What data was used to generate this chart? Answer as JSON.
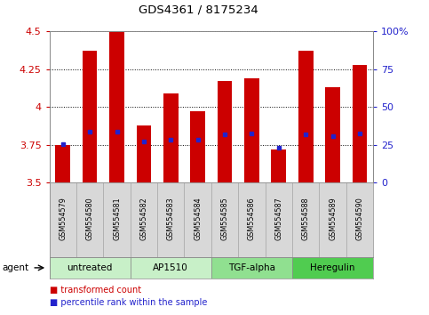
{
  "title": "GDS4361 / 8175234",
  "samples": [
    "GSM554579",
    "GSM554580",
    "GSM554581",
    "GSM554582",
    "GSM554583",
    "GSM554584",
    "GSM554585",
    "GSM554586",
    "GSM554587",
    "GSM554588",
    "GSM554589",
    "GSM554590"
  ],
  "bar_values": [
    3.75,
    4.37,
    4.5,
    3.88,
    4.09,
    3.97,
    4.17,
    4.19,
    3.72,
    4.37,
    4.13,
    4.28
  ],
  "percentile_values": [
    3.755,
    3.835,
    3.838,
    3.77,
    3.785,
    3.783,
    3.822,
    3.828,
    3.732,
    3.822,
    3.808,
    3.828
  ],
  "ymin": 3.5,
  "ymax": 4.5,
  "yticks": [
    3.5,
    3.75,
    4.0,
    4.25,
    4.5
  ],
  "ytick_labels": [
    "3.5",
    "3.75",
    "4",
    "4.25",
    "4.5"
  ],
  "right_yticks": [
    0,
    25,
    50,
    75,
    100
  ],
  "right_ytick_labels": [
    "0",
    "25",
    "50",
    "75",
    "100%"
  ],
  "bar_color": "#cc0000",
  "percentile_color": "#2222cc",
  "grid_color": "#000000",
  "bar_width": 0.55,
  "agents": [
    {
      "label": "untreated",
      "start": 0,
      "end": 3,
      "color": "#c8f0c8"
    },
    {
      "label": "AP1510",
      "start": 3,
      "end": 6,
      "color": "#c8f0c8"
    },
    {
      "label": "TGF-alpha",
      "start": 6,
      "end": 9,
      "color": "#90e090"
    },
    {
      "label": "Heregulin",
      "start": 9,
      "end": 12,
      "color": "#50cc50"
    }
  ],
  "tick_color_left": "#cc0000",
  "tick_color_right": "#2222cc",
  "bg_color": "#ffffff"
}
